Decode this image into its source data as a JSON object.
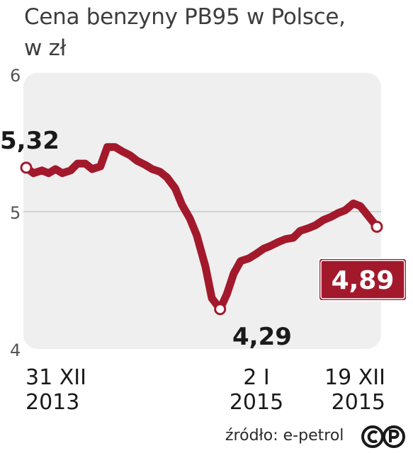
{
  "title_line1": "Cena benzyny PB95 w Polsce,",
  "title_line2": "w zł",
  "source": "źródło: e-petrol",
  "logo_icon": "cp-logo-icon",
  "colors": {
    "line": "#a3192c",
    "plot_bg": "#efefef",
    "gridline": "#c8c8c8",
    "text": "#1a1a1a",
    "badge_border": "#a3192c"
  },
  "chart_data": {
    "type": "line",
    "title": "Cena benzyny PB95 w Polsce, w zł",
    "ylim": [
      4,
      6
    ],
    "yticks": [
      "6",
      "5",
      "4"
    ],
    "x_labels": [
      {
        "line1": "31 XII",
        "line2": "2013"
      },
      {
        "line1": "2 I",
        "line2": "2015"
      },
      {
        "line1": "19 XII",
        "line2": "2015"
      }
    ],
    "annotations": {
      "start": "5,32",
      "min": "4,29",
      "end": "4,89"
    },
    "series": [
      {
        "x": [
          "2013-12-31",
          "2014-01-15",
          "2014-02-01",
          "2014-02-15",
          "2014-03-01",
          "2014-03-15",
          "2014-04-01",
          "2014-04-15",
          "2014-05-01",
          "2014-05-15",
          "2014-06-01",
          "2014-06-15",
          "2014-07-01",
          "2014-07-15",
          "2014-08-01",
          "2014-08-15",
          "2014-09-01",
          "2014-09-15",
          "2014-10-01",
          "2014-10-15",
          "2014-11-01",
          "2014-11-15",
          "2014-12-01",
          "2014-12-15",
          "2015-01-02",
          "2015-01-15",
          "2015-02-01",
          "2015-02-15",
          "2015-03-01",
          "2015-03-15",
          "2015-04-01",
          "2015-04-15",
          "2015-05-01",
          "2015-05-15",
          "2015-06-01",
          "2015-06-15",
          "2015-07-01",
          "2015-07-15",
          "2015-08-01",
          "2015-08-15",
          "2015-09-01",
          "2015-09-15",
          "2015-10-01",
          "2015-10-15",
          "2015-11-01",
          "2015-11-15",
          "2015-12-01",
          "2015-12-19"
        ],
        "values": [
          5.32,
          5.28,
          5.3,
          5.28,
          5.31,
          5.28,
          5.3,
          5.35,
          5.35,
          5.31,
          5.33,
          5.47,
          5.47,
          5.44,
          5.41,
          5.37,
          5.34,
          5.31,
          5.29,
          5.25,
          5.17,
          5.05,
          4.95,
          4.83,
          4.6,
          4.37,
          4.29,
          4.4,
          4.55,
          4.64,
          4.66,
          4.69,
          4.73,
          4.75,
          4.78,
          4.8,
          4.81,
          4.86,
          4.88,
          4.9,
          4.94,
          4.96,
          4.99,
          5.01,
          5.06,
          5.04,
          4.97,
          4.89
        ]
      }
    ]
  }
}
